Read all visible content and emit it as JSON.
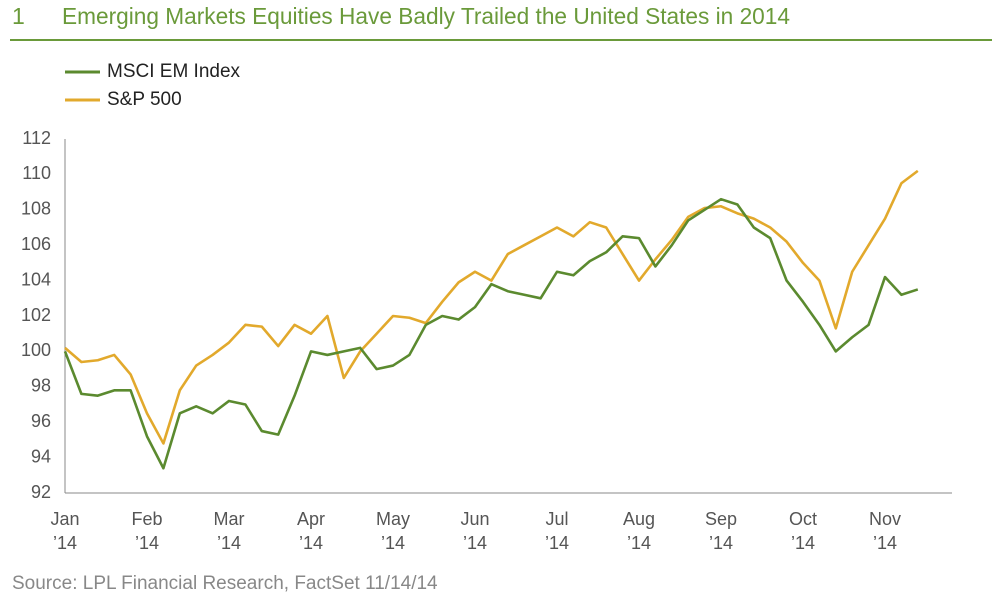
{
  "chart_data": {
    "type": "line",
    "number": "1",
    "title": "Emerging Markets Equities Have Badly Trailed the United States in 2014",
    "source": "Source: LPL Financial Research, FactSet  11/14/14",
    "categories": [
      "Jan ’14",
      null,
      null,
      null,
      null,
      "Feb ’14",
      null,
      null,
      null,
      null,
      "Mar ’14",
      null,
      null,
      null,
      null,
      "Apr ’14",
      null,
      null,
      null,
      null,
      "May ’14",
      null,
      null,
      null,
      null,
      "Jun ’14",
      null,
      null,
      null,
      null,
      "Jul ’14",
      null,
      null,
      null,
      null,
      "Aug ’14",
      null,
      null,
      null,
      null,
      "Sep ’14",
      null,
      null,
      null,
      null,
      "Oct ’14",
      null,
      null,
      null,
      null,
      "Nov ’14",
      null,
      null
    ],
    "series": [
      {
        "name": "MSCI EM Index",
        "color": "#5b8a2f",
        "values": [
          100,
          97.6,
          97.5,
          97.8,
          97.8,
          95.2,
          93.4,
          96.5,
          96.9,
          96.5,
          97.2,
          97.0,
          95.5,
          95.3,
          97.5,
          100.0,
          99.8,
          100.0,
          100.2,
          99.0,
          99.2,
          99.8,
          101.5,
          102.0,
          101.8,
          102.5,
          103.8,
          103.4,
          103.2,
          103.0,
          104.5,
          104.3,
          105.1,
          105.6,
          106.5,
          106.4,
          104.8,
          106.0,
          107.4,
          108.0,
          108.6,
          108.3,
          107.0,
          106.4,
          104.0,
          102.8,
          101.5,
          100.0,
          100.8,
          101.5,
          104.2,
          103.2,
          103.5
        ]
      },
      {
        "name": "S&P 500",
        "color": "#e2a92c",
        "values": [
          100.2,
          99.4,
          99.5,
          99.8,
          98.7,
          96.5,
          94.8,
          97.8,
          99.2,
          99.8,
          100.5,
          101.5,
          101.4,
          100.3,
          101.5,
          101.0,
          102.0,
          98.5,
          100.0,
          101.0,
          102.0,
          101.9,
          101.6,
          102.8,
          103.9,
          104.5,
          104.0,
          105.5,
          106.0,
          106.5,
          107.0,
          106.5,
          107.3,
          107.0,
          105.5,
          104.0,
          105.2,
          106.3,
          107.6,
          108.1,
          108.2,
          107.8,
          107.5,
          107.0,
          106.2,
          105.0,
          104.0,
          101.3,
          104.5,
          106.0,
          107.5,
          109.5,
          110.2
        ]
      }
    ],
    "ylim": [
      92,
      112
    ],
    "yticks": [
      92,
      94,
      96,
      98,
      100,
      102,
      104,
      106,
      108,
      110,
      112
    ],
    "grid": false
  }
}
